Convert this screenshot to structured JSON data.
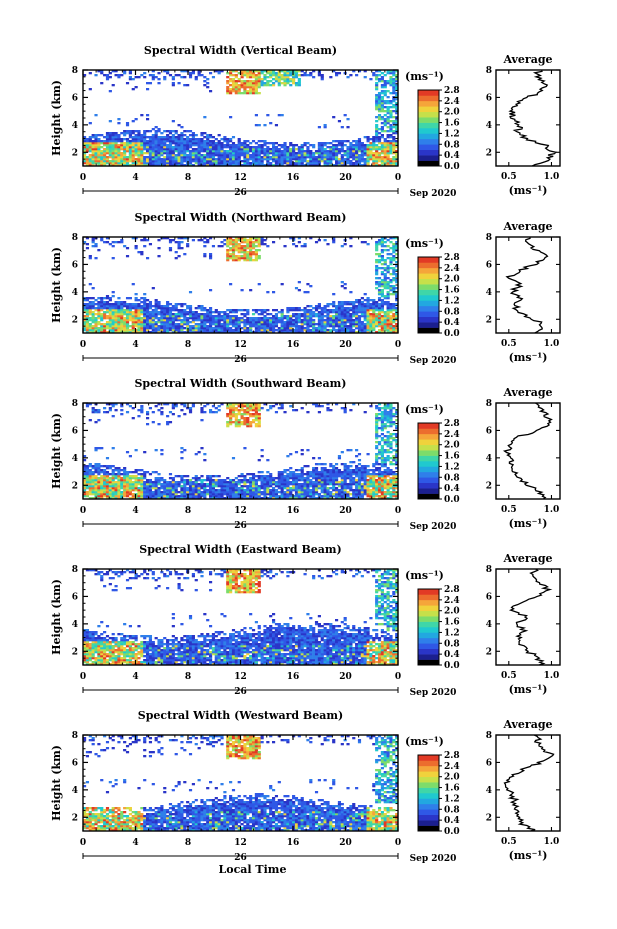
{
  "chart_data": [
    {
      "type": "heatmap",
      "title": "Spectral Width (Vertical Beam)",
      "ylabel": "Height (km)",
      "xlabel": "",
      "x_ticks": [
        "0",
        "4",
        "8",
        "12",
        "16",
        "20",
        "0"
      ],
      "y_ticks": [
        "2",
        "4",
        "6",
        "8"
      ],
      "xlim": [
        0,
        24
      ],
      "ylim": [
        1,
        8
      ],
      "date_day": "26",
      "date_label": "Sep 2020",
      "colorbar": {
        "unit": "(ms⁻¹)",
        "range": [
          0,
          2.8
        ],
        "ticks": [
          "2.8",
          "2.4",
          "2.0",
          "1.6",
          "1.2",
          "0.8",
          "0.4",
          "0.0"
        ]
      },
      "average_profile": {
        "title": "Average",
        "xlabel": "(ms⁻¹)",
        "x_ticks": [
          "0.5",
          "1.0"
        ],
        "xlim": [
          0.35,
          1.1
        ],
        "y_ticks": [
          "2",
          "4",
          "6",
          "8"
        ],
        "heights": [
          1.0,
          1.5,
          2.0,
          2.5,
          3.0,
          3.5,
          4.0,
          4.5,
          5.0,
          5.5,
          6.0,
          6.5,
          7.0,
          7.5,
          8.0
        ],
        "values": [
          0.82,
          0.98,
          1.02,
          0.92,
          0.7,
          0.6,
          0.64,
          0.55,
          0.55,
          0.6,
          0.72,
          0.9,
          0.95,
          0.85,
          0.85
        ]
      }
    },
    {
      "type": "heatmap",
      "title": "Spectral Width (Northward Beam)",
      "ylabel": "Height (km)",
      "xlabel": "",
      "x_ticks": [
        "0",
        "4",
        "8",
        "12",
        "16",
        "20",
        "0"
      ],
      "y_ticks": [
        "2",
        "4",
        "6",
        "8"
      ],
      "xlim": [
        0,
        24
      ],
      "ylim": [
        1,
        8
      ],
      "date_day": "26",
      "date_label": "Sep 2020",
      "colorbar": {
        "unit": "(ms⁻¹)",
        "range": [
          0,
          2.8
        ],
        "ticks": [
          "2.8",
          "2.4",
          "2.0",
          "1.6",
          "1.2",
          "0.8",
          "0.4",
          "0.0"
        ]
      },
      "average_profile": {
        "title": "Average",
        "xlabel": "(ms⁻¹)",
        "x_ticks": [
          "0.5",
          "1.0"
        ],
        "xlim": [
          0.35,
          1.1
        ],
        "y_ticks": [
          "2",
          "4",
          "6",
          "8"
        ],
        "heights": [
          1.0,
          1.5,
          2.0,
          2.5,
          3.0,
          3.5,
          4.0,
          4.5,
          5.0,
          5.5,
          6.0,
          6.5,
          7.0,
          7.5,
          8.0
        ],
        "values": [
          0.85,
          0.9,
          0.8,
          0.62,
          0.58,
          0.66,
          0.55,
          0.62,
          0.5,
          0.6,
          0.8,
          0.95,
          0.85,
          0.7,
          0.75
        ]
      }
    },
    {
      "type": "heatmap",
      "title": "Spectral Width (Southward Beam)",
      "ylabel": "Height (km)",
      "xlabel": "",
      "x_ticks": [
        "0",
        "4",
        "8",
        "12",
        "16",
        "20",
        "0"
      ],
      "y_ticks": [
        "2",
        "4",
        "6",
        "8"
      ],
      "xlim": [
        0,
        24
      ],
      "ylim": [
        1,
        8
      ],
      "date_day": "26",
      "date_label": "Sep 2020",
      "colorbar": {
        "unit": "(ms⁻¹)",
        "range": [
          0,
          2.8
        ],
        "ticks": [
          "2.8",
          "2.4",
          "2.0",
          "1.6",
          "1.2",
          "0.8",
          "0.4",
          "0.0"
        ]
      },
      "average_profile": {
        "title": "Average",
        "xlabel": "(ms⁻¹)",
        "x_ticks": [
          "0.5",
          "1.0"
        ],
        "xlim": [
          0.35,
          1.1
        ],
        "y_ticks": [
          "2",
          "4",
          "6",
          "8"
        ],
        "heights": [
          1.0,
          1.5,
          2.0,
          2.5,
          3.0,
          3.5,
          4.0,
          4.5,
          5.0,
          5.5,
          6.0,
          6.5,
          7.0,
          7.5,
          8.0
        ],
        "values": [
          0.95,
          0.85,
          0.72,
          0.62,
          0.58,
          0.55,
          0.5,
          0.48,
          0.5,
          0.6,
          0.85,
          1.0,
          0.95,
          0.9,
          0.85
        ]
      }
    },
    {
      "type": "heatmap",
      "title": "Spectral Width (Eastward Beam)",
      "ylabel": "Height (km)",
      "xlabel": "",
      "x_ticks": [
        "0",
        "4",
        "8",
        "12",
        "16",
        "20",
        "0"
      ],
      "y_ticks": [
        "2",
        "4",
        "6",
        "8"
      ],
      "xlim": [
        0,
        24
      ],
      "ylim": [
        1,
        8
      ],
      "date_day": "26",
      "date_label": "Sep 2020",
      "colorbar": {
        "unit": "(ms⁻¹)",
        "range": [
          0,
          2.8
        ],
        "ticks": [
          "2.8",
          "2.4",
          "2.0",
          "1.6",
          "1.2",
          "0.8",
          "0.4",
          "0.0"
        ]
      },
      "average_profile": {
        "title": "Average",
        "xlabel": "(ms⁻¹)",
        "x_ticks": [
          "0.5",
          "1.0"
        ],
        "xlim": [
          0.35,
          1.1
        ],
        "y_ticks": [
          "2",
          "4",
          "6",
          "8"
        ],
        "heights": [
          1.0,
          1.5,
          2.0,
          2.5,
          3.0,
          3.5,
          4.0,
          4.5,
          5.0,
          5.5,
          6.0,
          6.5,
          7.0,
          7.5,
          8.0
        ],
        "values": [
          0.9,
          0.85,
          0.72,
          0.65,
          0.62,
          0.7,
          0.55,
          0.72,
          0.55,
          0.6,
          0.82,
          0.95,
          0.85,
          0.8,
          0.8
        ]
      }
    },
    {
      "type": "heatmap",
      "title": "Spectral Width (Westward Beam)",
      "ylabel": "Height (km)",
      "xlabel": "Local Time",
      "x_ticks": [
        "0",
        "4",
        "8",
        "12",
        "16",
        "20",
        "0"
      ],
      "y_ticks": [
        "2",
        "4",
        "6",
        "8"
      ],
      "xlim": [
        0,
        24
      ],
      "ylim": [
        1,
        8
      ],
      "date_day": "26",
      "date_label": "Sep 2020",
      "colorbar": {
        "unit": "(ms⁻¹)",
        "range": [
          0,
          2.8
        ],
        "ticks": [
          "2.8",
          "2.4",
          "2.0",
          "1.6",
          "1.2",
          "0.8",
          "0.4",
          "0.0"
        ]
      },
      "average_profile": {
        "title": "Average",
        "xlabel": "(ms⁻¹)",
        "x_ticks": [
          "0.5",
          "1.0"
        ],
        "xlim": [
          0.35,
          1.1
        ],
        "y_ticks": [
          "2",
          "4",
          "6",
          "8"
        ],
        "heights": [
          1.0,
          1.5,
          2.0,
          2.5,
          3.0,
          3.5,
          4.0,
          4.5,
          5.0,
          5.5,
          6.0,
          6.5,
          7.0,
          7.5,
          8.0
        ],
        "values": [
          0.8,
          0.65,
          0.6,
          0.6,
          0.58,
          0.55,
          0.5,
          0.48,
          0.55,
          0.65,
          0.88,
          1.0,
          0.92,
          0.85,
          0.82
        ]
      }
    }
  ],
  "colors": {
    "colormap": [
      "#000000",
      "#1b1f8f",
      "#2a35c8",
      "#2f58e6",
      "#2f7fea",
      "#22a8e0",
      "#20c9cf",
      "#3fd6a8",
      "#7ddc6a",
      "#c6e04a",
      "#f0d23c",
      "#f5a53a",
      "#ec6d2e",
      "#e23a25"
    ],
    "missing": "#ffffff",
    "axis": "#000000"
  }
}
